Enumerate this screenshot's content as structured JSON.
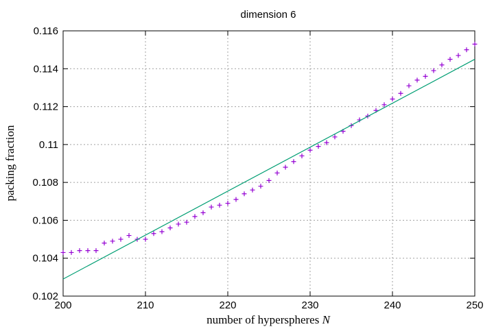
{
  "chart_data": {
    "type": "scatter",
    "title": "dimension 6",
    "xlabel_text": "number of hyperspheres ",
    "xlabel_var": "N",
    "ylabel": "packing fraction",
    "xlim": [
      200,
      250
    ],
    "ylim": [
      0.102,
      0.116
    ],
    "x_ticks": [
      "200",
      "210",
      "220",
      "230",
      "240",
      "250"
    ],
    "y_ticks": [
      "0.102",
      "0.104",
      "0.106",
      "0.108",
      "0.11",
      "0.112",
      "0.114",
      "0.116"
    ],
    "grid": true,
    "series": [
      {
        "kind": "points",
        "marker": "+",
        "color": "#9400d3",
        "x": [
          200,
          201,
          202,
          203,
          204,
          205,
          206,
          207,
          208,
          209,
          210,
          211,
          212,
          213,
          214,
          215,
          216,
          217,
          218,
          219,
          220,
          221,
          222,
          223,
          224,
          225,
          226,
          227,
          228,
          229,
          230,
          231,
          232,
          233,
          234,
          235,
          236,
          237,
          238,
          239,
          240,
          241,
          242,
          243,
          244,
          245,
          246,
          247,
          248,
          249,
          250
        ],
        "y": [
          0.1043,
          0.1043,
          0.1044,
          0.1044,
          0.1044,
          0.1048,
          0.1049,
          0.105,
          0.1052,
          0.105,
          0.105,
          0.1053,
          0.1054,
          0.1056,
          0.1058,
          0.1059,
          0.1062,
          0.1064,
          0.1067,
          0.1068,
          0.1069,
          0.1071,
          0.1074,
          0.1076,
          0.1078,
          0.1081,
          0.1085,
          0.1088,
          0.1091,
          0.1094,
          0.1097,
          0.1099,
          0.1101,
          0.1104,
          0.1107,
          0.111,
          0.1113,
          0.1115,
          0.1118,
          0.1121,
          0.1124,
          0.1127,
          0.1131,
          0.1134,
          0.1136,
          0.1139,
          0.1142,
          0.1145,
          0.1147,
          0.115,
          0.1153
        ]
      },
      {
        "kind": "line",
        "color": "#009e73",
        "x": [
          200,
          250
        ],
        "y": [
          0.1029,
          0.1145
        ]
      }
    ]
  }
}
